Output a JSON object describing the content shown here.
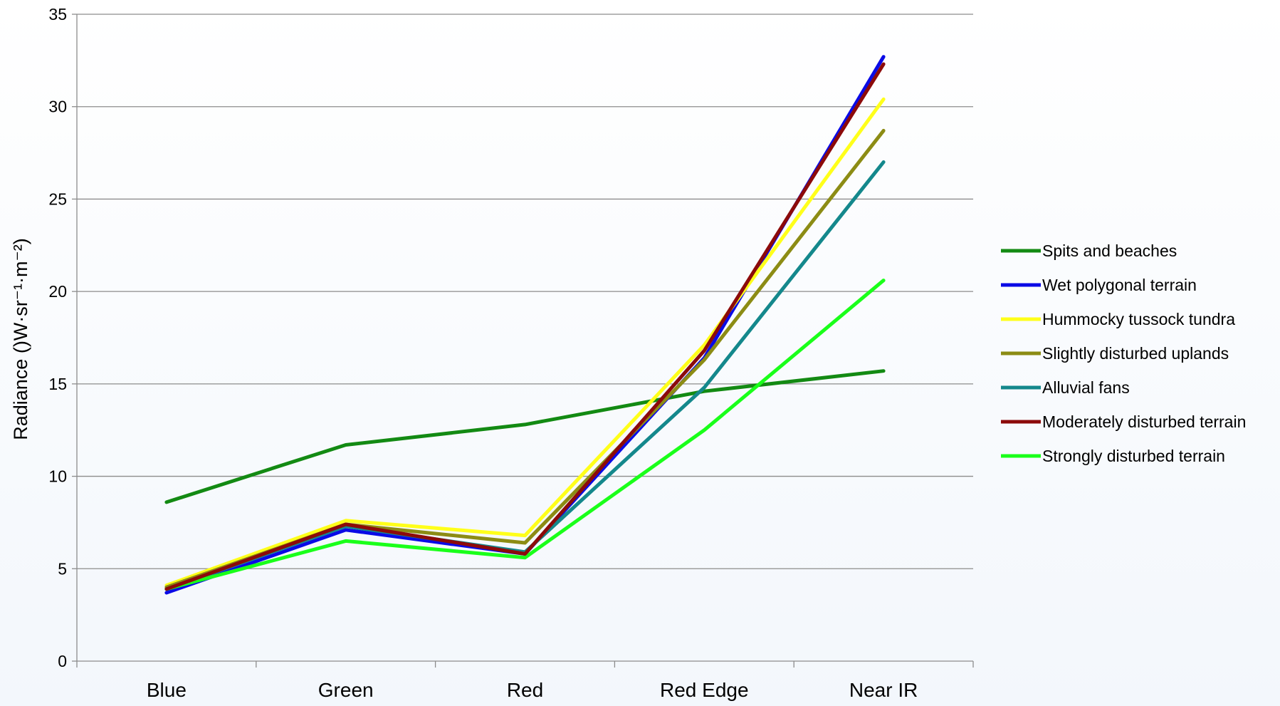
{
  "chart_data": {
    "type": "line",
    "title": "",
    "xlabel": "",
    "ylabel": "Radiance ()W·sr⁻¹·m⁻²)",
    "ylim": [
      0,
      35
    ],
    "yticks": [
      0,
      5,
      10,
      15,
      20,
      25,
      30,
      35
    ],
    "grid": "horizontal",
    "legend_position": "right",
    "categories": [
      "Blue",
      "Green",
      "Red",
      "Red Edge",
      "Near IR"
    ],
    "series": [
      {
        "name": "Spits and beaches",
        "color": "#138a13",
        "values": [
          8.6,
          11.7,
          12.8,
          14.6,
          15.7
        ]
      },
      {
        "name": "Wet polygonal terrain",
        "color": "#0a0ae6",
        "values": [
          3.7,
          7.1,
          5.8,
          16.4,
          32.7
        ]
      },
      {
        "name": "Hummocky tussock tundra",
        "color": "#ffff1a",
        "values": [
          4.1,
          7.6,
          6.8,
          17.1,
          30.4
        ]
      },
      {
        "name": "Slightly disturbed uplands",
        "color": "#8c8c14",
        "values": [
          4.0,
          7.4,
          6.4,
          16.3,
          28.7
        ]
      },
      {
        "name": "Alluvial fans",
        "color": "#14888c",
        "values": [
          3.9,
          7.3,
          5.9,
          14.8,
          27.0
        ]
      },
      {
        "name": "Moderately disturbed terrain",
        "color": "#8c0a0a",
        "values": [
          3.9,
          7.4,
          5.8,
          16.8,
          32.3
        ]
      },
      {
        "name": "Strongly disturbed terrain",
        "color": "#1aff1a",
        "values": [
          3.9,
          6.5,
          5.6,
          12.5,
          20.6
        ]
      }
    ]
  }
}
